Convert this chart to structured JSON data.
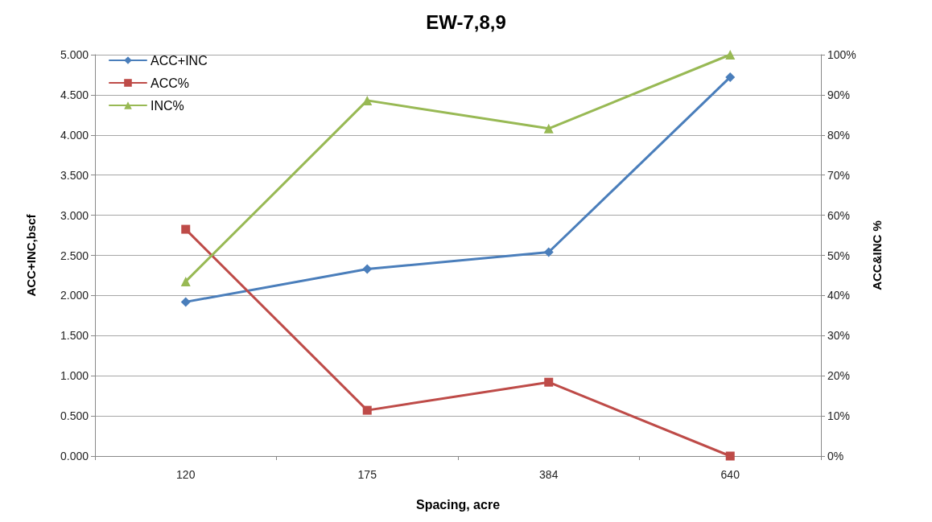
{
  "chart_data": {
    "type": "line",
    "title": "EW-7,8,9",
    "xlabel": "Spacing, acre",
    "ylabel": "ACC+INC,bscf",
    "y2label": "ACC&INC %",
    "categories": [
      "120",
      "175",
      "384",
      "640"
    ],
    "series": [
      {
        "name": "ACC+INC",
        "color": "#4a7ebb",
        "marker": "diamond",
        "values": [
          1.92,
          2.33,
          2.54,
          4.72
        ]
      },
      {
        "name": "ACC%",
        "color": "#be4b48",
        "marker": "square",
        "axis": "y2",
        "values": [
          56.5,
          11.4,
          18.4,
          0
        ]
      },
      {
        "name": "INC%",
        "color": "#98b954",
        "marker": "triangle",
        "axis": "y2",
        "values": [
          43.5,
          88.6,
          81.6,
          100
        ]
      }
    ],
    "ylim": [
      0,
      5
    ],
    "yticks": [
      {
        "value": 0,
        "label": "0.000"
      },
      {
        "value": 0.5,
        "label": "0.500"
      },
      {
        "value": 1,
        "label": "1.000"
      },
      {
        "value": 1.5,
        "label": "1.500"
      },
      {
        "value": 2,
        "label": "2.000"
      },
      {
        "value": 2.5,
        "label": "2.500"
      },
      {
        "value": 3,
        "label": "3.000"
      },
      {
        "value": 3.5,
        "label": "3.500"
      },
      {
        "value": 4,
        "label": "4.000"
      },
      {
        "value": 4.5,
        "label": "4.500"
      },
      {
        "value": 5,
        "label": "5.000"
      }
    ],
    "y2lim": [
      0,
      100
    ],
    "y2ticks": [
      {
        "value": 0,
        "label": "0%"
      },
      {
        "value": 10,
        "label": "10%"
      },
      {
        "value": 20,
        "label": "20%"
      },
      {
        "value": 30,
        "label": "30%"
      },
      {
        "value": 40,
        "label": "40%"
      },
      {
        "value": 50,
        "label": "50%"
      },
      {
        "value": 60,
        "label": "60%"
      },
      {
        "value": 70,
        "label": "70%"
      },
      {
        "value": 80,
        "label": "80%"
      },
      {
        "value": 90,
        "label": "90%"
      },
      {
        "value": 100,
        "label": "100%"
      }
    ],
    "grid": "y",
    "legend": "top left",
    "line_style": "solid"
  }
}
